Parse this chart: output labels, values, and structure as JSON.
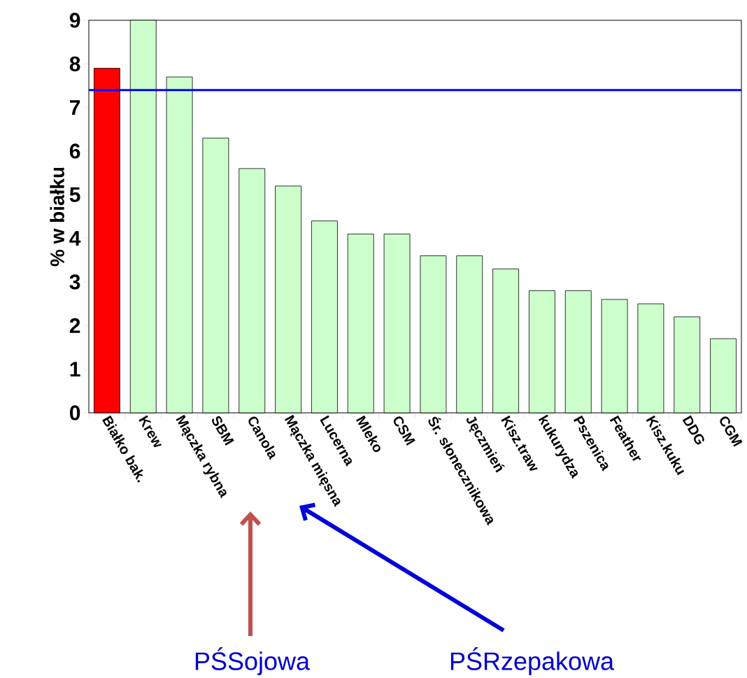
{
  "chart_data": {
    "type": "bar",
    "ylabel": "% w białku",
    "categories": [
      "Białko bak.",
      "Krew",
      "Mączka rybna",
      "SBM",
      "Canola",
      "Mączka mięsna",
      "Lucerna",
      "Mleko",
      "CSM",
      "Śr. słonecznikowa",
      "Jęczmień",
      "Kisz.traw",
      "kukurydza",
      "Pszenica",
      "Feather",
      "Kisz.kuku",
      "DDG",
      "CGM"
    ],
    "values": [
      7.9,
      9.0,
      7.7,
      6.3,
      5.6,
      5.2,
      4.4,
      4.1,
      4.1,
      3.6,
      3.6,
      3.3,
      2.8,
      2.8,
      2.6,
      2.5,
      2.2,
      1.7
    ],
    "colors": [
      "#ff0000",
      "#ccffcc",
      "#ccffcc",
      "#ccffcc",
      "#ccffcc",
      "#ccffcc",
      "#ccffcc",
      "#ccffcc",
      "#ccffcc",
      "#ccffcc",
      "#ccffcc",
      "#ccffcc",
      "#ccffcc",
      "#ccffcc",
      "#ccffcc",
      "#ccffcc",
      "#ccffcc",
      "#ccffcc"
    ],
    "ylim": [
      0,
      9
    ],
    "yticks": [
      0,
      1,
      2,
      3,
      4,
      5,
      6,
      7,
      8,
      9
    ],
    "ref_lines": [
      {
        "axis": "y",
        "value": 7.4,
        "color": "#0000ff"
      }
    ],
    "annotations": [
      "PŚSojowa",
      "PŚRzepakowa"
    ]
  }
}
